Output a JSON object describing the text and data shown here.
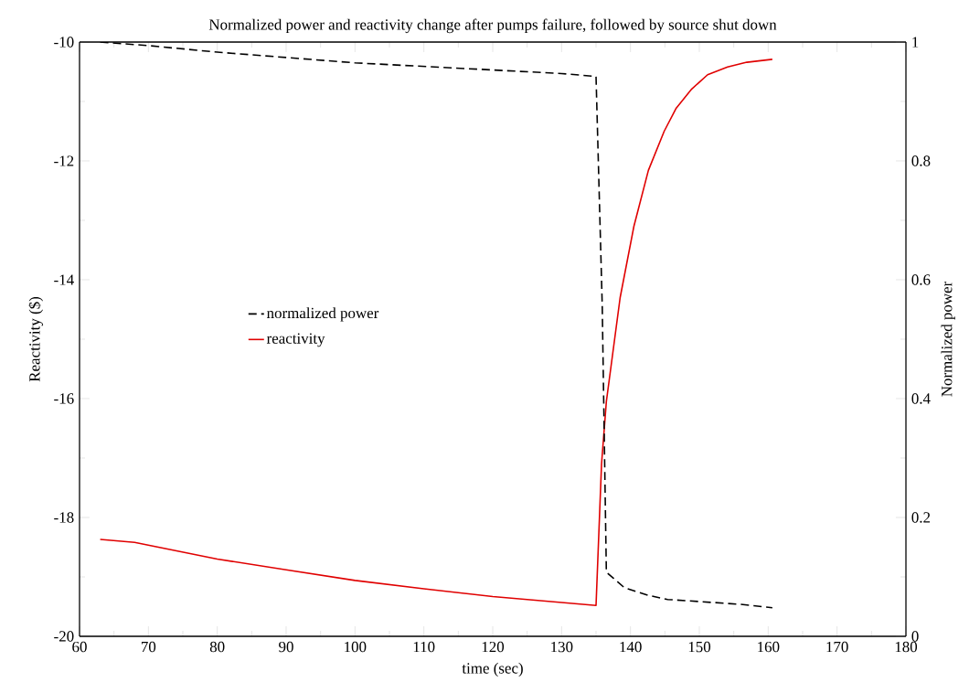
{
  "chart_data": {
    "type": "line",
    "title": "Normalized power and reactivity change after pumps failure, followed by source shut down",
    "xlabel": "time (sec)",
    "ylabel": "Reactivity ($)",
    "y2label": "Normalized power",
    "xlim": [
      60,
      180
    ],
    "xticks": [
      60,
      70,
      80,
      90,
      100,
      110,
      120,
      130,
      140,
      150,
      160,
      170,
      180
    ],
    "ylim": [
      -20,
      -10
    ],
    "yticks": [
      -20,
      -18,
      -16,
      -14,
      -12,
      -10
    ],
    "y2lim": [
      0,
      1
    ],
    "y2ticks": [
      0,
      0.2,
      0.4,
      0.6,
      0.8,
      1
    ],
    "grid": false,
    "legend": "left",
    "series": [
      {
        "name": "normalized power",
        "color": "#000000",
        "axis": "y2",
        "line_style": "dashed",
        "x": [
          63,
          70,
          80,
          100,
          130,
          135,
          135.9,
          136.5,
          139.1,
          142.6,
          145.4,
          155.8,
          160.6
        ],
        "values": [
          1.0,
          0.994,
          0.983,
          0.965,
          0.947,
          0.942,
          0.557,
          0.108,
          0.082,
          0.069,
          0.062,
          0.054,
          0.048
        ]
      },
      {
        "name": "reactivity",
        "color": "#e00000",
        "line_style": "solid",
        "x": [
          63,
          68,
          80,
          90,
          100,
          110,
          120,
          135,
          135.8,
          136.5,
          138.5,
          140.5,
          142.6,
          144.9,
          146.6,
          148.9,
          151.2,
          154.1,
          156.9,
          160.6
        ],
        "values": [
          -18.37,
          -18.42,
          -18.7,
          -18.88,
          -19.06,
          -19.2,
          -19.33,
          -19.48,
          -17.1,
          -16.05,
          -14.3,
          -13.1,
          -12.16,
          -11.5,
          -11.12,
          -10.79,
          -10.55,
          -10.42,
          -10.34,
          -10.29
        ]
      }
    ]
  }
}
